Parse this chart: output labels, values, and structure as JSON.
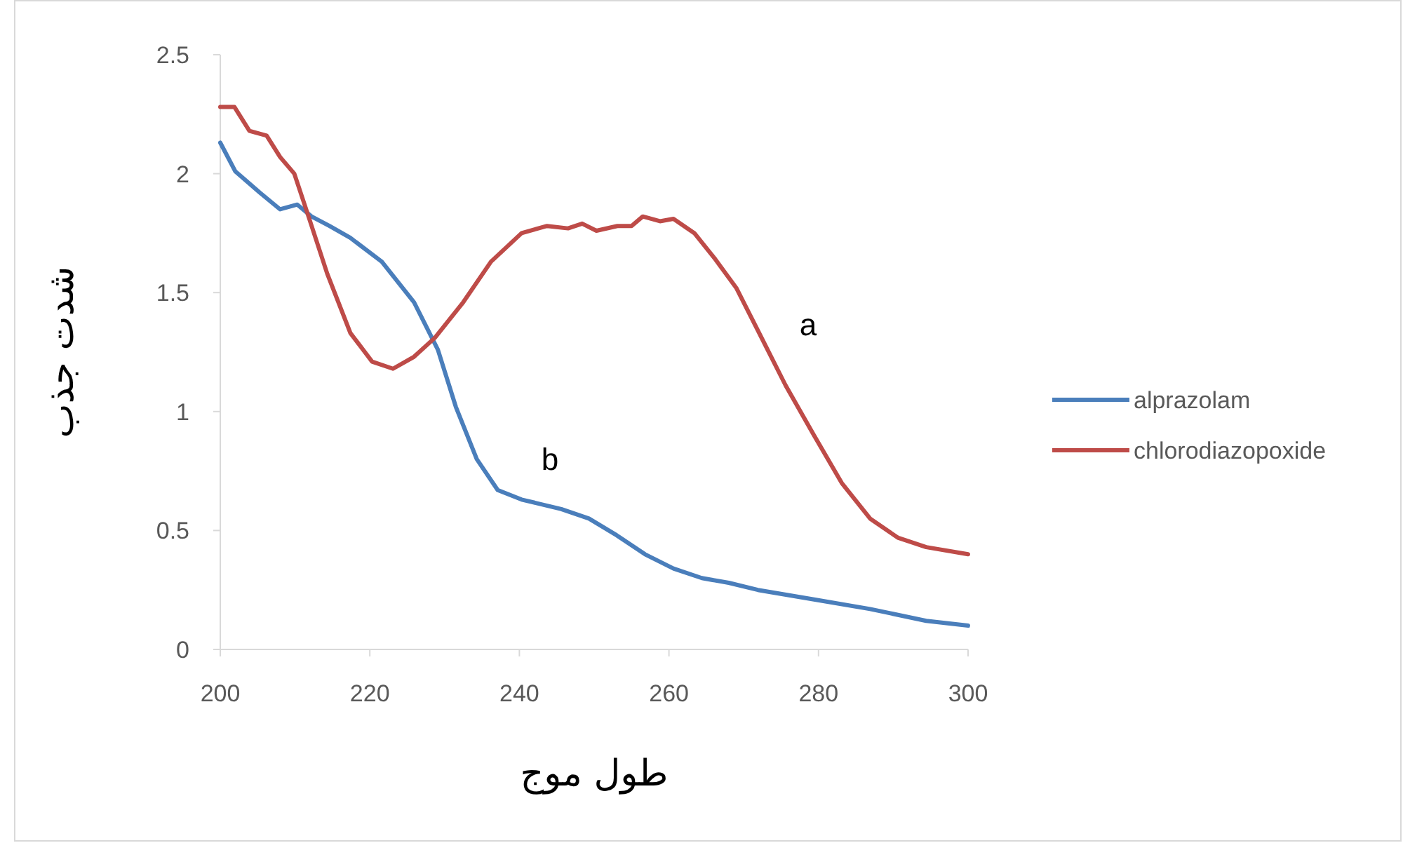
{
  "chart_data": {
    "type": "line",
    "xlabel": "طول موج",
    "ylabel": "شدت جذب",
    "xlim": [
      200,
      300
    ],
    "ylim": [
      0,
      2.5
    ],
    "xticks": [
      200,
      220,
      240,
      260,
      280,
      300
    ],
    "yticks": [
      0,
      0.5,
      1,
      1.5,
      2,
      2.5
    ],
    "legend": "right",
    "series": [
      {
        "name": "alprazolam",
        "color": "#4a7ebb",
        "x": [
          200,
          202,
          205.3,
          208,
          210.3,
          212.2,
          214.6,
          217.4,
          221.6,
          225.9,
          229.1,
          231.5,
          234.3,
          237.1,
          240.3,
          245.6,
          249.3,
          253,
          256.8,
          260.6,
          264.4,
          268,
          271.9,
          279.4,
          286.9,
          294.4,
          300
        ],
        "values": [
          2.13,
          2.01,
          1.92,
          1.85,
          1.87,
          1.82,
          1.78,
          1.73,
          1.63,
          1.46,
          1.26,
          1.02,
          0.8,
          0.67,
          0.63,
          0.59,
          0.55,
          0.48,
          0.4,
          0.34,
          0.3,
          0.28,
          0.25,
          0.21,
          0.17,
          0.12,
          0.1
        ]
      },
      {
        "name": "chlorodiazopoxide",
        "color": "#be4b48",
        "x": [
          200,
          201.9,
          203.9,
          206.2,
          208,
          209.9,
          211.8,
          214.3,
          217.4,
          220.3,
          223.1,
          225.9,
          228.7,
          232.5,
          236.2,
          240.3,
          243.7,
          246.5,
          248.4,
          250.3,
          253.1,
          255,
          256.5,
          258.8,
          260.6,
          263.4,
          266.2,
          269,
          271.9,
          275.6,
          279.4,
          283.1,
          286.9,
          290.6,
          294.4,
          300
        ],
        "values": [
          2.28,
          2.28,
          2.18,
          2.16,
          2.07,
          2.0,
          1.82,
          1.58,
          1.33,
          1.21,
          1.18,
          1.23,
          1.31,
          1.46,
          1.63,
          1.75,
          1.78,
          1.77,
          1.79,
          1.76,
          1.78,
          1.78,
          1.82,
          1.8,
          1.81,
          1.75,
          1.64,
          1.52,
          1.34,
          1.11,
          0.9,
          0.7,
          0.55,
          0.47,
          0.43,
          0.4
        ]
      }
    ],
    "annotations": [
      "a",
      "b"
    ]
  }
}
